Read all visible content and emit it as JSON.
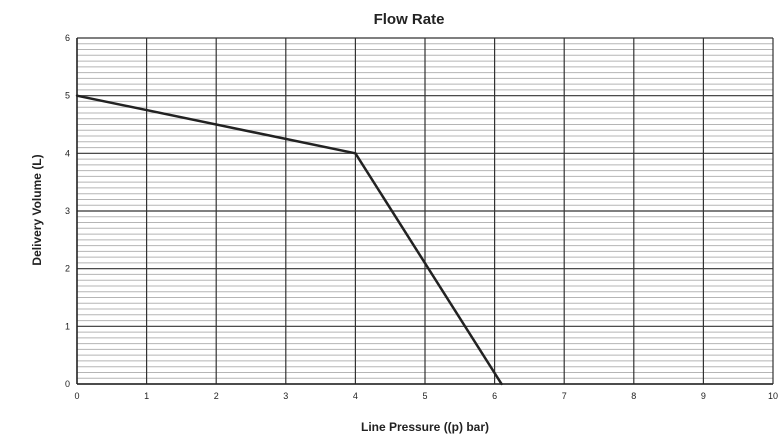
{
  "chart_data": {
    "type": "line",
    "title": "Flow Rate",
    "xlabel": "Line Pressure ((p) bar)",
    "ylabel": "Delivery Volume (L)",
    "xlim": [
      0,
      10
    ],
    "ylim": [
      0,
      6
    ],
    "x_ticks": [
      "0",
      "1",
      "2",
      "3",
      "4",
      "5",
      "6",
      "7",
      "8",
      "9",
      "10"
    ],
    "y_ticks": [
      "0",
      "1",
      "2",
      "3",
      "4",
      "5",
      "6"
    ],
    "grid": true,
    "minor_grid_y_step": 0.1,
    "legend": "none",
    "series": [
      {
        "x": [
          0,
          4,
          6.1
        ],
        "y": [
          5,
          4,
          0
        ],
        "color": "#222222"
      }
    ]
  },
  "colors": {
    "major_grid": "#333333",
    "minor_grid": "#b5b5b5",
    "line": "#222222",
    "axis": "#222222"
  }
}
